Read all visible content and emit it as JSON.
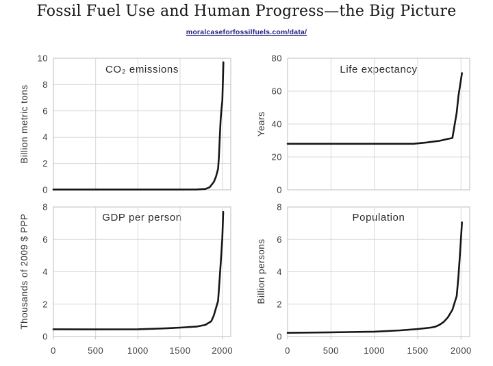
{
  "title": "Fossil Fuel Use and Human Progress—the Big Picture",
  "source_link": "moralcaseforfossilfuels.com/data/",
  "colors": {
    "link": "#22227f",
    "grid": "#d9d9d9",
    "plot_border": "#c7c7c7",
    "tick_mark": "#bdbdbd",
    "line": "#161616",
    "tick_label": "#3d3d3d",
    "title_text": "#161616"
  },
  "chart_data": [
    {
      "type": "line",
      "title": "CO₂ emissions",
      "ylabel": "Billion metric tons",
      "xlabel": "",
      "ylim": [
        0,
        10
      ],
      "yticks": [
        0,
        2,
        4,
        6,
        8,
        10
      ],
      "xlim": [
        0,
        2100
      ],
      "xticks": [
        0,
        500,
        1000,
        1500,
        2000
      ],
      "show_x_tick_labels": false,
      "grid": true,
      "legend": false,
      "x": [
        0,
        500,
        1000,
        1500,
        1700,
        1800,
        1850,
        1900,
        1925,
        1950,
        1960,
        1970,
        1980,
        1990,
        2000,
        2013
      ],
      "y": [
        0.02,
        0.02,
        0.02,
        0.02,
        0.03,
        0.07,
        0.2,
        0.6,
        1.0,
        1.6,
        2.5,
        4.0,
        5.3,
        6.1,
        6.75,
        9.7
      ]
    },
    {
      "type": "line",
      "title": "Life expectancy",
      "ylabel": "Years",
      "xlabel": "",
      "ylim": [
        0,
        80
      ],
      "yticks": [
        0,
        20,
        40,
        60,
        80
      ],
      "xlim": [
        0,
        2100
      ],
      "xticks": [
        0,
        500,
        1000,
        1500,
        2000
      ],
      "show_x_tick_labels": false,
      "grid": true,
      "legend": false,
      "x": [
        0,
        500,
        1000,
        1450,
        1600,
        1750,
        1850,
        1900,
        1950,
        1970,
        2011
      ],
      "y": [
        28,
        28,
        28,
        28,
        28.8,
        29.8,
        31,
        31.5,
        47,
        57,
        71
      ]
    },
    {
      "type": "line",
      "title": "GDP per person",
      "ylabel": "Thousands of 2009 $ PPP",
      "xlabel": "",
      "ylim": [
        0,
        8
      ],
      "yticks": [
        0,
        2,
        4,
        6,
        8
      ],
      "xlim": [
        0,
        2100
      ],
      "xticks": [
        0,
        500,
        1000,
        1500,
        2000
      ],
      "show_x_tick_labels": true,
      "grid": true,
      "legend": false,
      "x": [
        0,
        500,
        1000,
        1300,
        1500,
        1700,
        1800,
        1870,
        1900,
        1950,
        1970,
        1990,
        2000,
        2011
      ],
      "y": [
        0.45,
        0.44,
        0.45,
        0.5,
        0.55,
        0.62,
        0.72,
        0.95,
        1.3,
        2.2,
        3.7,
        5.2,
        6.1,
        7.7
      ]
    },
    {
      "type": "line",
      "title": "Population",
      "ylabel": "Billion persons",
      "xlabel": "",
      "ylim": [
        0,
        8
      ],
      "yticks": [
        0,
        2,
        4,
        6,
        8
      ],
      "xlim": [
        0,
        2100
      ],
      "xticks": [
        0,
        500,
        1000,
        1500,
        2000
      ],
      "show_x_tick_labels": true,
      "grid": true,
      "legend": false,
      "x": [
        0,
        500,
        1000,
        1300,
        1500,
        1650,
        1700,
        1750,
        1800,
        1850,
        1900,
        1950,
        1970,
        1990,
        2011
      ],
      "y": [
        0.23,
        0.26,
        0.3,
        0.38,
        0.46,
        0.55,
        0.6,
        0.72,
        0.9,
        1.2,
        1.65,
        2.5,
        3.7,
        5.3,
        7.05
      ]
    }
  ]
}
